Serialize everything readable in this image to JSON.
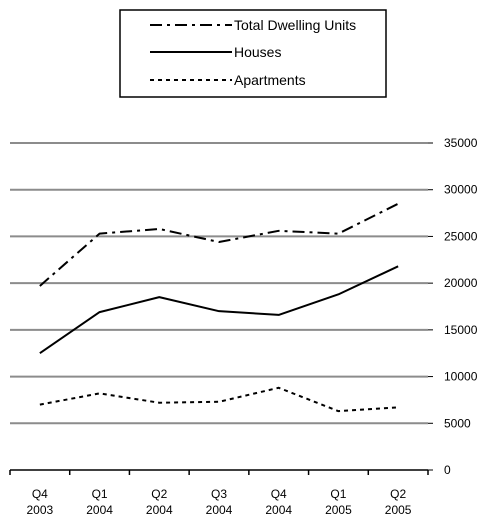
{
  "chart_data": {
    "type": "line",
    "title": "",
    "xlabel": "",
    "ylabel": "",
    "categories": [
      [
        "Q4",
        "2003"
      ],
      [
        "Q1",
        "2004"
      ],
      [
        "Q2",
        "2004"
      ],
      [
        "Q3",
        "2004"
      ],
      [
        "Q4",
        "2004"
      ],
      [
        "Q1",
        "2005"
      ],
      [
        "Q2",
        "2005"
      ]
    ],
    "ylim": [
      0,
      35000
    ],
    "yticks": [
      "0",
      "5000",
      "10000",
      "15000",
      "20000",
      "25000",
      "30000",
      "35000"
    ],
    "y_axis_side": "right",
    "grid": true,
    "legend_position": "top-center",
    "series": [
      {
        "name": "Total Dwelling Units",
        "style": "dash-dot",
        "values": [
          19700,
          25300,
          25800,
          24400,
          25600,
          25300,
          28500
        ]
      },
      {
        "name": "Houses",
        "style": "solid",
        "values": [
          12500,
          16900,
          18500,
          17000,
          16600,
          18800,
          21800
        ]
      },
      {
        "name": "Apartments",
        "style": "dotted",
        "values": [
          7000,
          8200,
          7200,
          7300,
          8800,
          6300,
          6700
        ]
      }
    ]
  }
}
